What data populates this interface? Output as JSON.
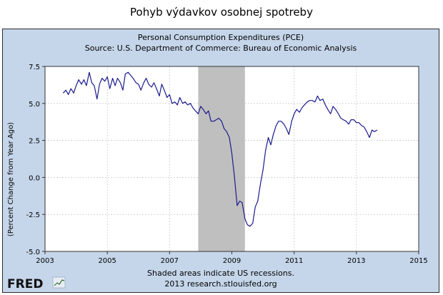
{
  "page_title": "Pohyb výdavkov osobnej spotreby",
  "logo_text": "FRED",
  "footer": {
    "note": "Shaded areas indicate US recessions.",
    "source_url": "2013 research.stlouisfed.org"
  },
  "colors": {
    "frame_bg": "#c5d6ea",
    "plot_bg": "#ffffff",
    "line": "#1b1b8f",
    "recession": "#bfbfbf"
  },
  "chart_data": {
    "type": "line",
    "title": "Personal Consumption Expenditures (PCE)",
    "subtitle": "Source: U.S. Department of Commerce: Bureau of Economic Analysis",
    "xlabel": "",
    "ylabel": "(Percent Change from Year Ago)",
    "xlim": [
      2003,
      2015
    ],
    "ylim": [
      -5.0,
      7.5
    ],
    "x_ticks": [
      2003,
      2005,
      2007,
      2009,
      2011,
      2013,
      2015
    ],
    "x_tick_labels": [
      "2003",
      "2005",
      "2007",
      "2009",
      "2011",
      "2013",
      "2015"
    ],
    "y_ticks": [
      -5.0,
      -2.5,
      0.0,
      2.5,
      5.0,
      7.5
    ],
    "y_tick_labels": [
      "-5.0",
      "-2.5",
      "0.0",
      "2.5",
      "5.0",
      "7.5"
    ],
    "grid": true,
    "recessions": [
      {
        "start": 2007.92,
        "end": 2009.42
      }
    ],
    "series": [
      {
        "name": "PCE",
        "x": [
          2003.58,
          2003.67,
          2003.75,
          2003.83,
          2003.92,
          2004.0,
          2004.08,
          2004.17,
          2004.25,
          2004.33,
          2004.42,
          2004.5,
          2004.58,
          2004.67,
          2004.75,
          2004.83,
          2004.92,
          2005.0,
          2005.08,
          2005.17,
          2005.25,
          2005.33,
          2005.42,
          2005.5,
          2005.58,
          2005.67,
          2005.75,
          2005.83,
          2005.92,
          2006.0,
          2006.08,
          2006.17,
          2006.25,
          2006.33,
          2006.42,
          2006.5,
          2006.58,
          2006.67,
          2006.75,
          2006.83,
          2006.92,
          2007.0,
          2007.08,
          2007.17,
          2007.25,
          2007.33,
          2007.42,
          2007.5,
          2007.58,
          2007.67,
          2007.75,
          2007.83,
          2007.92,
          2008.0,
          2008.08,
          2008.17,
          2008.25,
          2008.33,
          2008.42,
          2008.5,
          2008.58,
          2008.67,
          2008.75,
          2008.83,
          2008.92,
          2009.0,
          2009.08,
          2009.17,
          2009.25,
          2009.33,
          2009.42,
          2009.5,
          2009.58,
          2009.67,
          2009.75,
          2009.83,
          2009.92,
          2010.0,
          2010.08,
          2010.17,
          2010.25,
          2010.33,
          2010.42,
          2010.5,
          2010.58,
          2010.67,
          2010.75,
          2010.83,
          2010.92,
          2011.0,
          2011.08,
          2011.17,
          2011.25,
          2011.33,
          2011.42,
          2011.5,
          2011.58,
          2011.67,
          2011.75,
          2011.83,
          2011.92,
          2012.0,
          2012.08,
          2012.17,
          2012.25,
          2012.33,
          2012.42,
          2012.5,
          2012.58,
          2012.67,
          2012.75,
          2012.83,
          2012.92,
          2013.0,
          2013.08,
          2013.17,
          2013.25,
          2013.33,
          2013.42,
          2013.5,
          2013.58,
          2013.67
        ],
        "y": [
          5.7,
          5.9,
          5.6,
          6.0,
          5.7,
          6.2,
          6.6,
          6.3,
          6.6,
          6.2,
          7.1,
          6.4,
          6.2,
          5.3,
          6.3,
          6.7,
          6.5,
          6.8,
          6.0,
          6.7,
          6.2,
          6.7,
          6.4,
          5.9,
          7.0,
          7.1,
          6.9,
          6.7,
          6.4,
          6.3,
          5.9,
          6.4,
          6.7,
          6.3,
          6.1,
          6.4,
          6.0,
          5.5,
          6.3,
          5.9,
          5.4,
          5.6,
          5.0,
          5.1,
          4.9,
          5.4,
          5.0,
          5.1,
          4.9,
          5.0,
          4.7,
          4.5,
          4.3,
          4.8,
          4.6,
          4.3,
          4.5,
          3.8,
          3.8,
          3.9,
          4.0,
          3.8,
          3.3,
          3.1,
          2.7,
          1.6,
          0.1,
          -1.9,
          -1.6,
          -1.7,
          -2.8,
          -3.2,
          -3.3,
          -3.1,
          -2.0,
          -1.6,
          -0.4,
          0.5,
          1.8,
          2.7,
          2.2,
          2.9,
          3.5,
          3.8,
          3.8,
          3.6,
          3.3,
          2.9,
          3.8,
          4.3,
          4.6,
          4.4,
          4.7,
          4.9,
          5.1,
          5.2,
          5.2,
          5.1,
          5.5,
          5.2,
          5.3,
          4.9,
          4.6,
          4.3,
          4.8,
          4.6,
          4.3,
          4.0,
          3.9,
          3.8,
          3.6,
          3.9,
          3.9,
          3.7,
          3.7,
          3.5,
          3.4,
          3.1,
          2.7,
          3.2,
          3.1,
          3.2
        ]
      }
    ]
  }
}
